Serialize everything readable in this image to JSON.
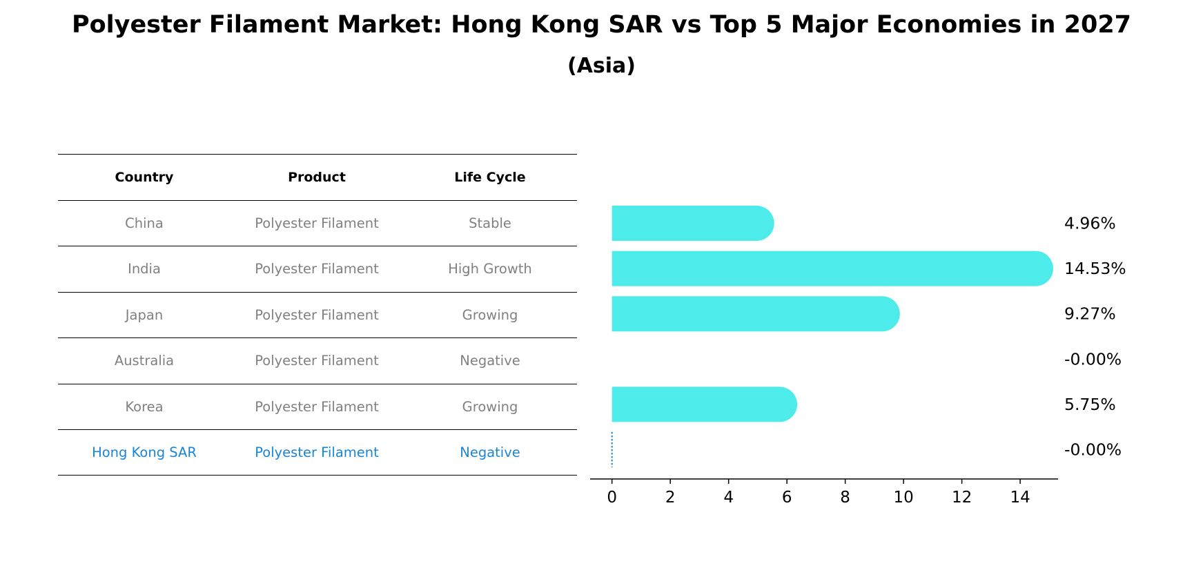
{
  "title": "Polyester Filament Market: Hong Kong SAR vs Top 5 Major Economies in 2027",
  "subtitle": "(Asia)",
  "table": {
    "headers": [
      "Country",
      "Product",
      "Life Cycle"
    ],
    "rows": [
      {
        "country": "China",
        "product": "Polyester Filament",
        "life_cycle": "Stable"
      },
      {
        "country": "India",
        "product": "Polyester Filament",
        "life_cycle": "High Growth"
      },
      {
        "country": "Japan",
        "product": "Polyester Filament",
        "life_cycle": "Growing"
      },
      {
        "country": "Australia",
        "product": "Polyester Filament",
        "life_cycle": "Negative"
      },
      {
        "country": "Korea",
        "product": "Polyester Filament",
        "life_cycle": "Growing"
      },
      {
        "country": "Hong Kong SAR",
        "product": "Polyester Filament",
        "life_cycle": "Negative"
      }
    ],
    "highlight_row": "Hong Kong SAR"
  },
  "chart_data": {
    "type": "bar",
    "orientation": "horizontal",
    "categories": [
      "China",
      "India",
      "Japan",
      "Australia",
      "Korea",
      "Hong Kong SAR"
    ],
    "values": [
      4.96,
      14.53,
      9.27,
      -0.0,
      5.75,
      -0.0
    ],
    "value_labels": [
      "4.96%",
      "14.53%",
      "9.27%",
      "-0.00%",
      "5.75%",
      "-0.00%"
    ],
    "xlim": [
      -0.75,
      15.3
    ],
    "xticks": [
      0,
      2,
      4,
      6,
      8,
      10,
      12,
      14
    ],
    "xtick_labels": [
      "0",
      "2",
      "4",
      "6",
      "8",
      "10",
      "12",
      "14"
    ],
    "grid": false,
    "colors": {
      "bar": "#4deceb",
      "highlight": "#1a85d6",
      "axis": "#000000",
      "table_text": "#808080"
    }
  }
}
